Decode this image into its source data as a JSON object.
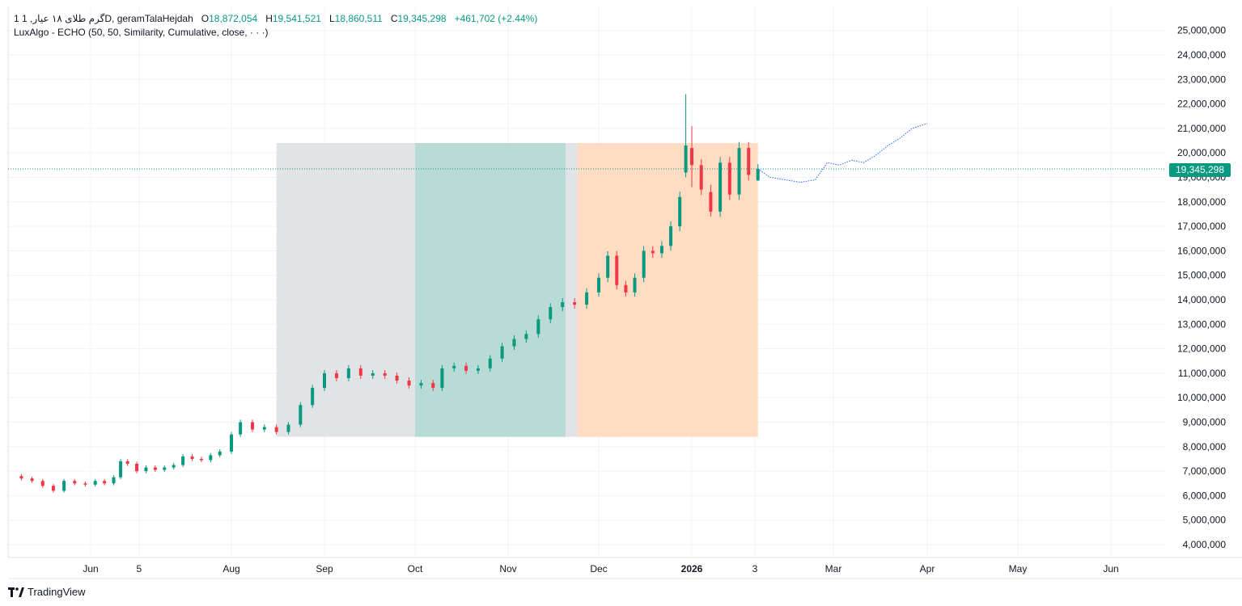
{
  "legend": {
    "symbol": "1 گرم طلای ۱۸ عیار, 1D, geramTalaHejdah",
    "open_label": "O",
    "open": "18,872,054",
    "high_label": "H",
    "high": "19,541,521",
    "low_label": "L",
    "low": "18,860,511",
    "close_label": "C",
    "close": "19,345,298",
    "change": "+461,702 (+2.44%)",
    "indicator": "LuxAlgo - ECHO (50, 50, Similarity, Cumulative, close, · · ·)"
  },
  "last_price_label": "19,345,298",
  "brand": "TradingView",
  "colors": {
    "up": "#089981",
    "down": "#f23645",
    "forecast": "#2962ff"
  },
  "chart_data": {
    "type": "candlestick",
    "ylim": [
      3500000,
      25500000
    ],
    "y_ticks": [
      "4,000,000",
      "5,000,000",
      "6,000,000",
      "7,000,000",
      "8,000,000",
      "9,000,000",
      "10,000,000",
      "11,000,000",
      "12,000,000",
      "13,000,000",
      "14,000,000",
      "15,000,000",
      "16,000,000",
      "17,000,000",
      "18,000,000",
      "19,000,000",
      "20,000,000",
      "21,000,000",
      "22,000,000",
      "23,000,000",
      "24,000,000",
      "25,000,000"
    ],
    "x_ticks": [
      {
        "label": "Jun",
        "date": "2025-06-01"
      },
      {
        "label": "5",
        "date": "2025-06-22"
      },
      {
        "label": "Aug",
        "date": "2025-08-01"
      },
      {
        "label": "Sep",
        "date": "2025-09-01"
      },
      {
        "label": "Oct",
        "date": "2025-10-01"
      },
      {
        "label": "Nov",
        "date": "2025-11-01"
      },
      {
        "label": "Dec",
        "date": "2025-12-01"
      },
      {
        "label": "2026",
        "date": "2026-01-01",
        "bold": true
      },
      {
        "label": "3",
        "date": "2026-01-21"
      },
      {
        "label": "Mar",
        "date": "2026-02-16"
      },
      {
        "label": "Apr",
        "date": "2026-03-19"
      },
      {
        "label": "May",
        "date": "2026-04-18"
      },
      {
        "label": "Jun",
        "date": "2026-05-19"
      }
    ],
    "close_series": [
      [
        "2025-05-01",
        6800000
      ],
      [
        "2025-05-06",
        6700000
      ],
      [
        "2025-05-10",
        6600000
      ],
      [
        "2025-05-14",
        6400000
      ],
      [
        "2025-05-18",
        6200000
      ],
      [
        "2025-05-22",
        6600000
      ],
      [
        "2025-05-26",
        6500000
      ],
      [
        "2025-05-30",
        6450000
      ],
      [
        "2025-06-03",
        6600000
      ],
      [
        "2025-06-07",
        6500000
      ],
      [
        "2025-06-11",
        6750000
      ],
      [
        "2025-06-14",
        7400000
      ],
      [
        "2025-06-17",
        7300000
      ],
      [
        "2025-06-21",
        7000000
      ],
      [
        "2025-06-25",
        7150000
      ],
      [
        "2025-06-29",
        7050000
      ],
      [
        "2025-07-03",
        7150000
      ],
      [
        "2025-07-07",
        7250000
      ],
      [
        "2025-07-11",
        7600000
      ],
      [
        "2025-07-15",
        7500000
      ],
      [
        "2025-07-19",
        7450000
      ],
      [
        "2025-07-23",
        7650000
      ],
      [
        "2025-07-27",
        7800000
      ],
      [
        "2025-08-01",
        8500000
      ],
      [
        "2025-08-04",
        9000000
      ],
      [
        "2025-08-08",
        8700000
      ],
      [
        "2025-08-12",
        8800000
      ],
      [
        "2025-08-16",
        8600000
      ],
      [
        "2025-08-20",
        8900000
      ],
      [
        "2025-08-24",
        9700000
      ],
      [
        "2025-08-28",
        10400000
      ],
      [
        "2025-09-01",
        11000000
      ],
      [
        "2025-09-05",
        10800000
      ],
      [
        "2025-09-09",
        11200000
      ],
      [
        "2025-09-13",
        10900000
      ],
      [
        "2025-09-17",
        11000000
      ],
      [
        "2025-09-21",
        10900000
      ],
      [
        "2025-09-25",
        10700000
      ],
      [
        "2025-09-29",
        10500000
      ],
      [
        "2025-10-03",
        10600000
      ],
      [
        "2025-10-07",
        10400000
      ],
      [
        "2025-10-10",
        11200000
      ],
      [
        "2025-10-14",
        11300000
      ],
      [
        "2025-10-18",
        11100000
      ],
      [
        "2025-10-22",
        11200000
      ],
      [
        "2025-10-26",
        11600000
      ],
      [
        "2025-10-30",
        12100000
      ],
      [
        "2025-11-03",
        12400000
      ],
      [
        "2025-11-07",
        12600000
      ],
      [
        "2025-11-11",
        13200000
      ],
      [
        "2025-11-15",
        13700000
      ],
      [
        "2025-11-19",
        13900000
      ],
      [
        "2025-11-23",
        13800000
      ],
      [
        "2025-11-27",
        14300000
      ],
      [
        "2025-12-01",
        14900000
      ],
      [
        "2025-12-04",
        15800000
      ],
      [
        "2025-12-07",
        14600000
      ],
      [
        "2025-12-10",
        14300000
      ],
      [
        "2025-12-13",
        14900000
      ],
      [
        "2025-12-16",
        16000000
      ],
      [
        "2025-12-19",
        15900000
      ],
      [
        "2025-12-22",
        16200000
      ],
      [
        "2025-12-25",
        17000000
      ],
      [
        "2025-12-28",
        18200000
      ],
      [
        "2025-12-30",
        20300000
      ],
      [
        "2026-01-01",
        19500000
      ],
      [
        "2026-01-04",
        18500000
      ],
      [
        "2026-01-07",
        17600000
      ],
      [
        "2026-01-10",
        19600000
      ],
      [
        "2026-01-13",
        18300000
      ],
      [
        "2026-01-16",
        20200000
      ],
      [
        "2026-01-19",
        19100000
      ],
      [
        "2026-01-22",
        19345298
      ]
    ],
    "candles": [
      {
        "date": "2025-12-30",
        "o": 19200000,
        "h": 22400000,
        "l": 19000000,
        "c": 20300000
      },
      {
        "date": "2026-01-01",
        "o": 20200000,
        "h": 21100000,
        "l": 18600000,
        "c": 19500000
      },
      {
        "date": "2026-01-07",
        "o": 18400000,
        "h": 18700000,
        "l": 17400000,
        "c": 17600000
      },
      {
        "date": "2026-01-22",
        "o": 18872054,
        "h": 19541521,
        "l": 18860511,
        "c": 19345298
      }
    ],
    "forecast_series": [
      [
        "2026-01-22",
        19345298
      ],
      [
        "2026-01-26",
        19000000
      ],
      [
        "2026-01-31",
        18900000
      ],
      [
        "2026-02-05",
        18800000
      ],
      [
        "2026-02-10",
        18900000
      ],
      [
        "2026-02-14",
        19600000
      ],
      [
        "2026-02-18",
        19500000
      ],
      [
        "2026-02-22",
        19700000
      ],
      [
        "2026-02-26",
        19600000
      ],
      [
        "2026-03-02",
        19900000
      ],
      [
        "2026-03-06",
        20300000
      ],
      [
        "2026-03-10",
        20600000
      ],
      [
        "2026-03-14",
        21000000
      ],
      [
        "2026-03-19",
        21200000
      ]
    ],
    "regions": [
      {
        "role": "reference",
        "start": "2025-08-16",
        "end": "2025-12-10",
        "ymin": 8400000,
        "ymax": 20400000,
        "color": "#e1e3e6"
      },
      {
        "role": "match",
        "start": "2025-10-01",
        "end": "2025-11-20",
        "ymin": 8400000,
        "ymax": 20400000,
        "color": "#b8dcd5"
      },
      {
        "role": "current",
        "start": "2025-11-24",
        "end": "2026-01-22",
        "ymin": 8400000,
        "ymax": 20400000,
        "color": "#ffdcc2"
      }
    ]
  }
}
